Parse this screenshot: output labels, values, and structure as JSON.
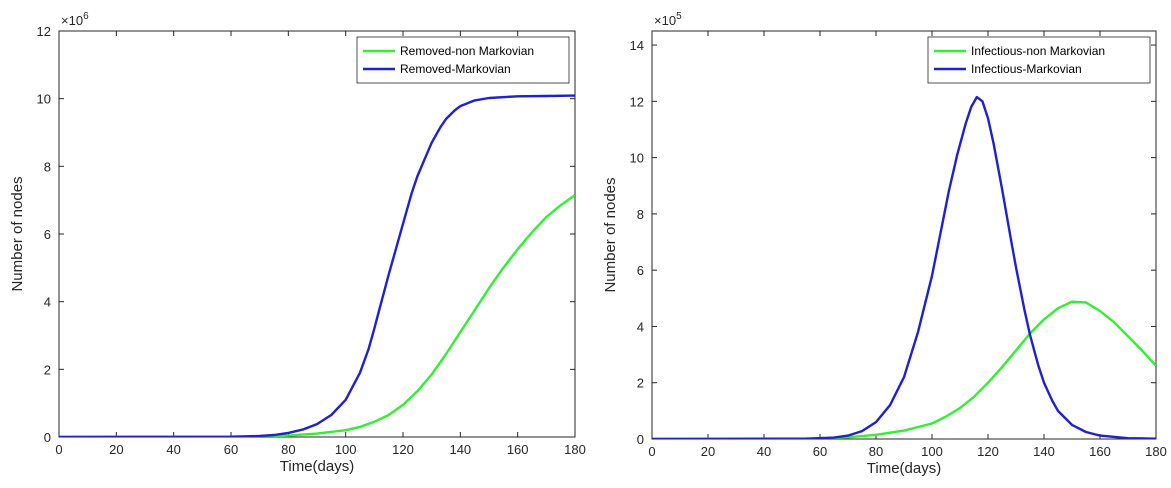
{
  "chart_data": [
    {
      "type": "line",
      "title": "",
      "xlabel": "Time(days)",
      "ylabel": "Number of nodes",
      "y_multiplier_label": "×10",
      "y_multiplier_exponent": "6",
      "xlim": [
        0,
        180
      ],
      "ylim": [
        0,
        12
      ],
      "xticks": [
        0,
        20,
        40,
        60,
        80,
        100,
        120,
        140,
        160,
        180
      ],
      "yticks": [
        0,
        2,
        4,
        6,
        8,
        10,
        12
      ],
      "grid": false,
      "legend_position": "top-right",
      "series": [
        {
          "name": "Removed-non Markovian",
          "color": "#33ee33",
          "points": [
            [
              0,
              0
            ],
            [
              60,
              0
            ],
            [
              70,
              0.01
            ],
            [
              80,
              0.04
            ],
            [
              90,
              0.1
            ],
            [
              100,
              0.2
            ],
            [
              105,
              0.3
            ],
            [
              110,
              0.45
            ],
            [
              115,
              0.65
            ],
            [
              120,
              0.95
            ],
            [
              125,
              1.35
            ],
            [
              130,
              1.85
            ],
            [
              135,
              2.45
            ],
            [
              140,
              3.1
            ],
            [
              145,
              3.75
            ],
            [
              150,
              4.4
            ],
            [
              155,
              5.0
            ],
            [
              160,
              5.55
            ],
            [
              165,
              6.05
            ],
            [
              170,
              6.5
            ],
            [
              175,
              6.85
            ],
            [
              180,
              7.15
            ]
          ]
        },
        {
          "name": "Removed-Markovian",
          "color": "#2020cc",
          "points": [
            [
              0,
              0
            ],
            [
              60,
              0.01
            ],
            [
              70,
              0.03
            ],
            [
              75,
              0.06
            ],
            [
              80,
              0.12
            ],
            [
              85,
              0.22
            ],
            [
              90,
              0.38
            ],
            [
              95,
              0.65
            ],
            [
              100,
              1.1
            ],
            [
              105,
              1.9
            ],
            [
              108,
              2.6
            ],
            [
              110,
              3.2
            ],
            [
              112,
              3.85
            ],
            [
              115,
              4.8
            ],
            [
              118,
              5.7
            ],
            [
              120,
              6.3
            ],
            [
              123,
              7.2
            ],
            [
              125,
              7.7
            ],
            [
              128,
              8.3
            ],
            [
              130,
              8.7
            ],
            [
              133,
              9.15
            ],
            [
              135,
              9.4
            ],
            [
              138,
              9.65
            ],
            [
              140,
              9.78
            ],
            [
              145,
              9.95
            ],
            [
              150,
              10.02
            ],
            [
              160,
              10.07
            ],
            [
              170,
              10.08
            ],
            [
              180,
              10.09
            ]
          ]
        }
      ]
    },
    {
      "type": "line",
      "title": "",
      "xlabel": "Time(days)",
      "ylabel": "Number of nodes",
      "y_multiplier_label": "×10",
      "y_multiplier_exponent": "5",
      "xlim": [
        0,
        180
      ],
      "ylim": [
        0,
        14.5
      ],
      "xticks": [
        0,
        20,
        40,
        60,
        80,
        100,
        120,
        140,
        160,
        180
      ],
      "yticks": [
        0,
        2,
        4,
        6,
        8,
        10,
        12,
        14
      ],
      "grid": false,
      "legend_position": "top-right",
      "series": [
        {
          "name": "Infectious-non Markovian",
          "color": "#33ee33",
          "points": [
            [
              0,
              0
            ],
            [
              60,
              0.02
            ],
            [
              70,
              0.06
            ],
            [
              80,
              0.15
            ],
            [
              90,
              0.3
            ],
            [
              100,
              0.55
            ],
            [
              105,
              0.8
            ],
            [
              110,
              1.1
            ],
            [
              115,
              1.5
            ],
            [
              120,
              2.0
            ],
            [
              125,
              2.55
            ],
            [
              130,
              3.15
            ],
            [
              135,
              3.75
            ],
            [
              140,
              4.25
            ],
            [
              145,
              4.65
            ],
            [
              150,
              4.88
            ],
            [
              155,
              4.85
            ],
            [
              160,
              4.55
            ],
            [
              165,
              4.15
            ],
            [
              170,
              3.65
            ],
            [
              175,
              3.15
            ],
            [
              180,
              2.6
            ]
          ]
        },
        {
          "name": "Infectious-Markovian",
          "color": "#2020cc",
          "points": [
            [
              0,
              0
            ],
            [
              55,
              0.01
            ],
            [
              65,
              0.05
            ],
            [
              70,
              0.12
            ],
            [
              75,
              0.28
            ],
            [
              80,
              0.6
            ],
            [
              85,
              1.2
            ],
            [
              90,
              2.2
            ],
            [
              95,
              3.8
            ],
            [
              100,
              5.8
            ],
            [
              103,
              7.3
            ],
            [
              106,
              8.8
            ],
            [
              109,
              10.1
            ],
            [
              112,
              11.2
            ],
            [
              114,
              11.8
            ],
            [
              116,
              12.15
            ],
            [
              118,
              12.0
            ],
            [
              120,
              11.4
            ],
            [
              122,
              10.5
            ],
            [
              125,
              8.9
            ],
            [
              128,
              7.2
            ],
            [
              130,
              6.1
            ],
            [
              133,
              4.6
            ],
            [
              135,
              3.7
            ],
            [
              138,
              2.6
            ],
            [
              140,
              2.0
            ],
            [
              143,
              1.35
            ],
            [
              145,
              1.0
            ],
            [
              150,
              0.5
            ],
            [
              155,
              0.25
            ],
            [
              160,
              0.12
            ],
            [
              170,
              0.03
            ],
            [
              180,
              0.01
            ]
          ]
        }
      ]
    }
  ]
}
